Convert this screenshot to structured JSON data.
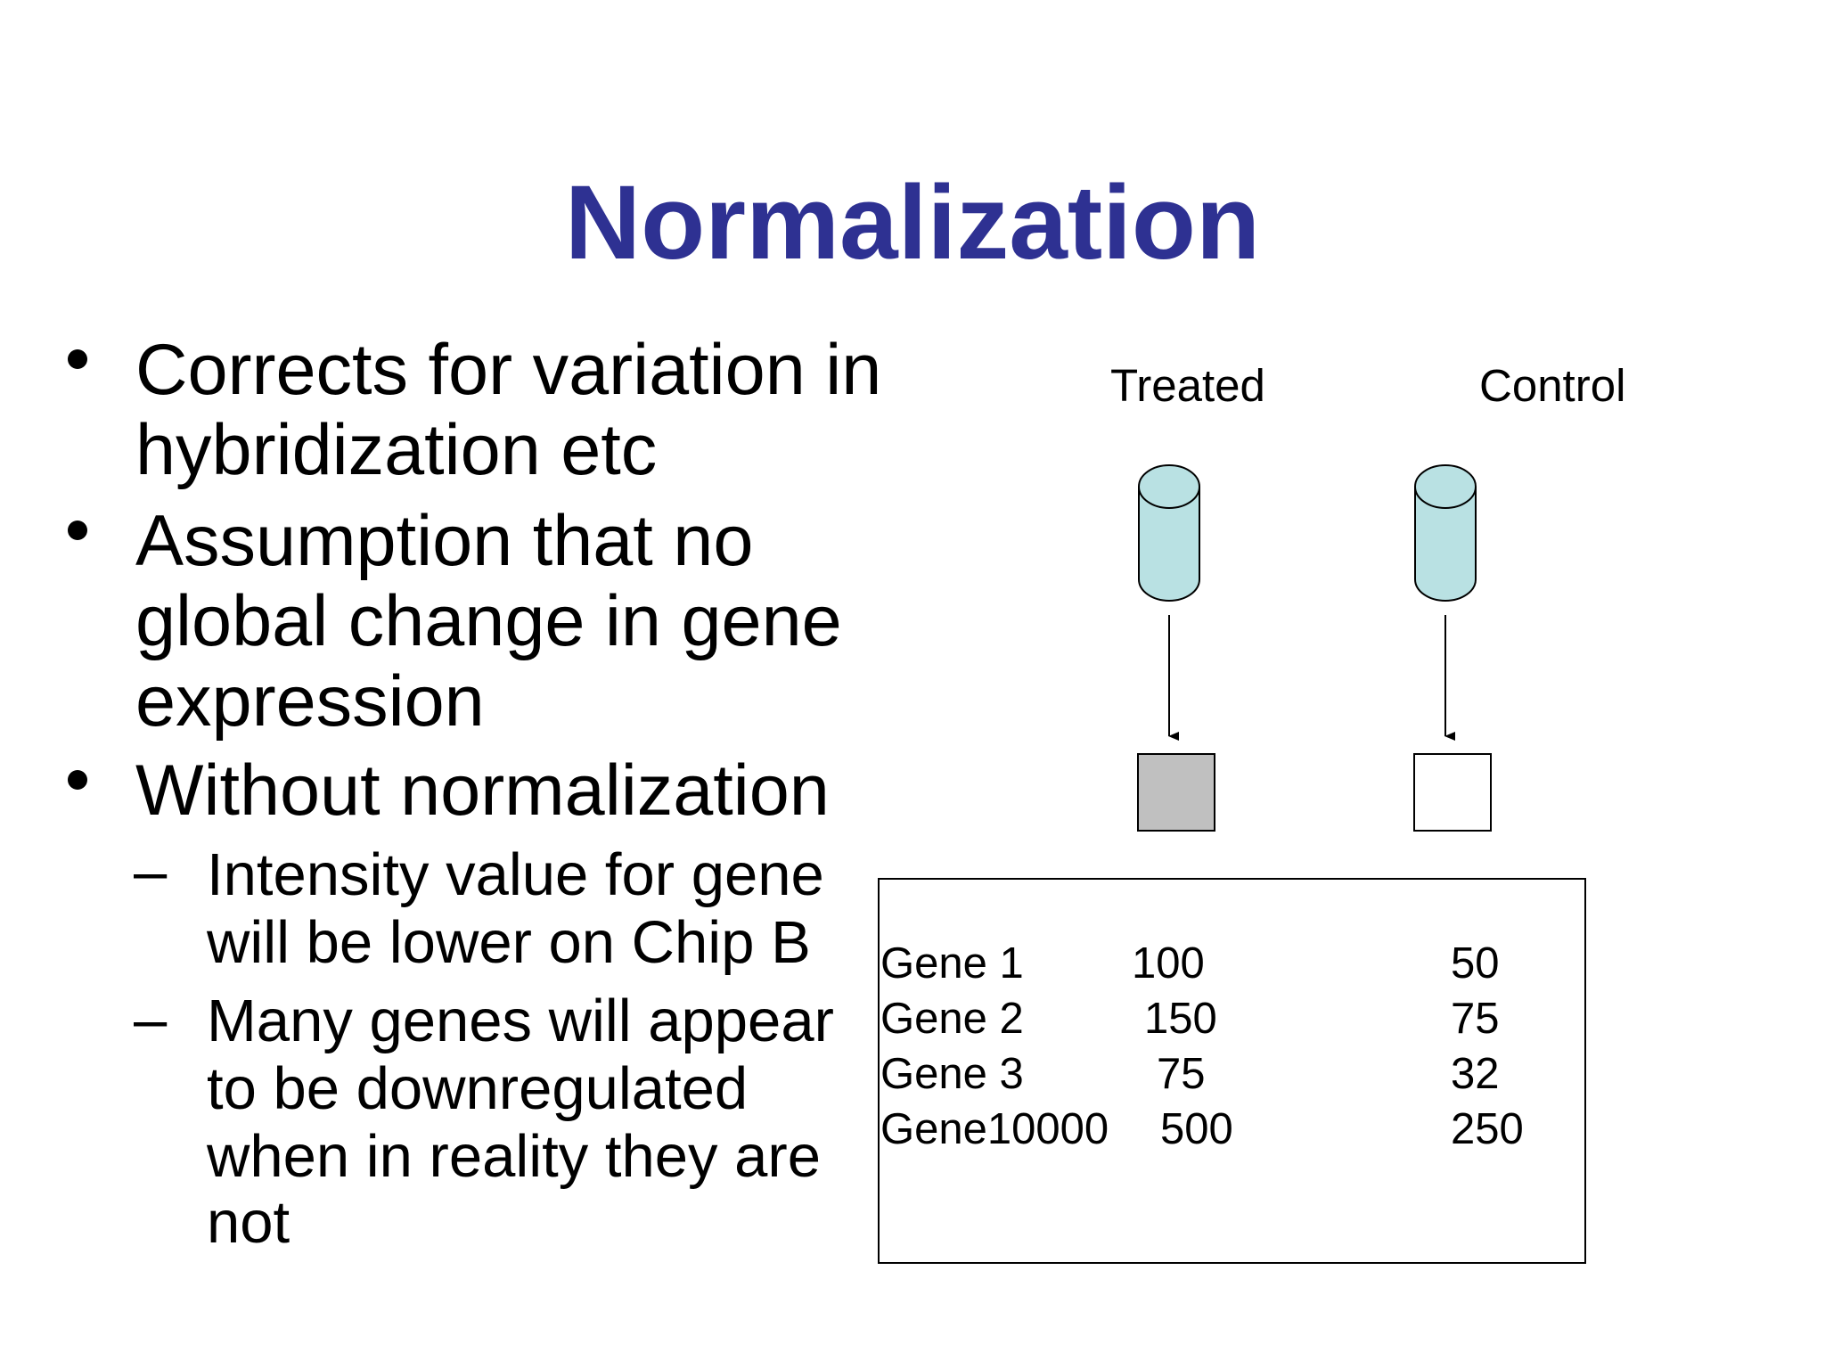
{
  "title": "Normalization",
  "bullets": [
    {
      "lines": [
        "Corrects for variation in",
        "hybridization etc"
      ]
    },
    {
      "lines": [
        "Assumption that no",
        "global change in gene",
        "expression"
      ]
    },
    {
      "lines": [
        "Without normalization"
      ],
      "sub": [
        {
          "lines": [
            "Intensity value for gene",
            "will be lower on Chip B"
          ]
        },
        {
          "lines": [
            "Many genes will appear",
            "to be downregulated",
            "when in reality they are",
            "not"
          ]
        }
      ]
    }
  ],
  "diagram": {
    "labels": {
      "treated": "Treated",
      "control": "Control"
    },
    "colors": {
      "tube_fill": "#B9E1E3",
      "treated_chip": "#C0C0C0",
      "control_chip": "#FFFFFF"
    }
  },
  "table": {
    "rows": [
      {
        "gene": "Gene 1",
        "treated": "100",
        "control": "50"
      },
      {
        "gene": "Gene 2",
        "treated": "150",
        "control": "75"
      },
      {
        "gene": "Gene 3",
        "treated": "75",
        "control": "32"
      },
      {
        "gene": "Gene10000",
        "treated": "500",
        "control": "250"
      }
    ]
  }
}
